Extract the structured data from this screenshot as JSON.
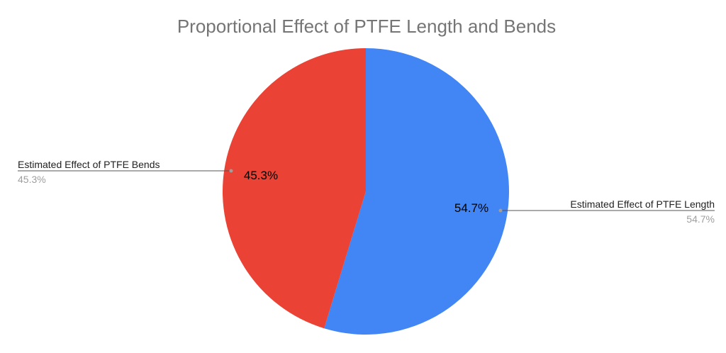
{
  "chart_data": {
    "type": "pie",
    "title": "Proportional Effect of PTFE Length and Bends",
    "slices": [
      {
        "name": "Estimated Effect of PTFE Length",
        "value": 54.7,
        "label": "54.7%",
        "color": "#4285F4"
      },
      {
        "name": "Estimated Effect of PTFE Bends",
        "value": 45.3,
        "label": "45.3%",
        "color": "#EA4335"
      }
    ],
    "start_angle_deg": 0,
    "direction": "clockwise",
    "legend": "callouts"
  }
}
